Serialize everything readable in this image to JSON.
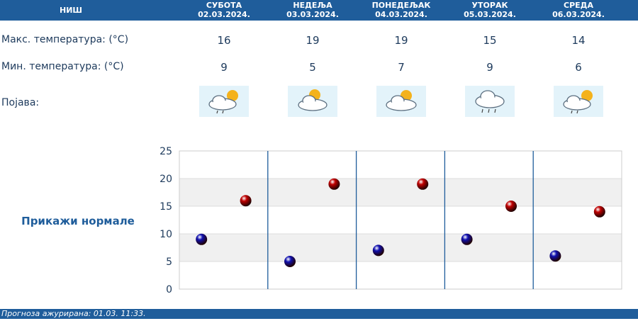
{
  "header": {
    "city": "НИШ",
    "days": [
      {
        "name": "СУБОТА",
        "date": "02.03.2024."
      },
      {
        "name": "НЕДЕЉА",
        "date": "03.03.2024."
      },
      {
        "name": "ПОНЕДЕЉАК",
        "date": "04.03.2024."
      },
      {
        "name": "УТОРАК",
        "date": "05.03.2024."
      },
      {
        "name": "СРЕДА",
        "date": "06.03.2024."
      }
    ]
  },
  "rows": {
    "max_label": "Макс. температура: (°C)",
    "min_label": "Мин. температура: (°C)",
    "phen_label": "Појава:",
    "max": [
      "16",
      "19",
      "19",
      "15",
      "14"
    ],
    "min": [
      "9",
      "5",
      "7",
      "9",
      "6"
    ],
    "icons": [
      "partly-cloudy-rain-icon",
      "partly-cloudy-icon",
      "partly-cloudy-icon",
      "rain-cloud-icon",
      "partly-cloudy-rain-icon"
    ]
  },
  "normals_link": "Прикажи нормале",
  "footer": "Прогноза ажурирана:  01.03.  11:33.",
  "chart_data": {
    "type": "scatter",
    "categories": [
      "СУБОТА",
      "НЕДЕЉА",
      "ПОНЕДЕЉАК",
      "УТОРАК",
      "СРЕДА"
    ],
    "series": [
      {
        "values": [
          9,
          5,
          7,
          9,
          6
        ],
        "color": "#1010b0"
      },
      {
        "values": [
          16,
          19,
          19,
          15,
          14
        ],
        "color": "#c00000"
      }
    ],
    "ylim": [
      0,
      25
    ],
    "yticks": [
      "0",
      "5",
      "10",
      "15",
      "20",
      "25"
    ],
    "grid": true
  }
}
